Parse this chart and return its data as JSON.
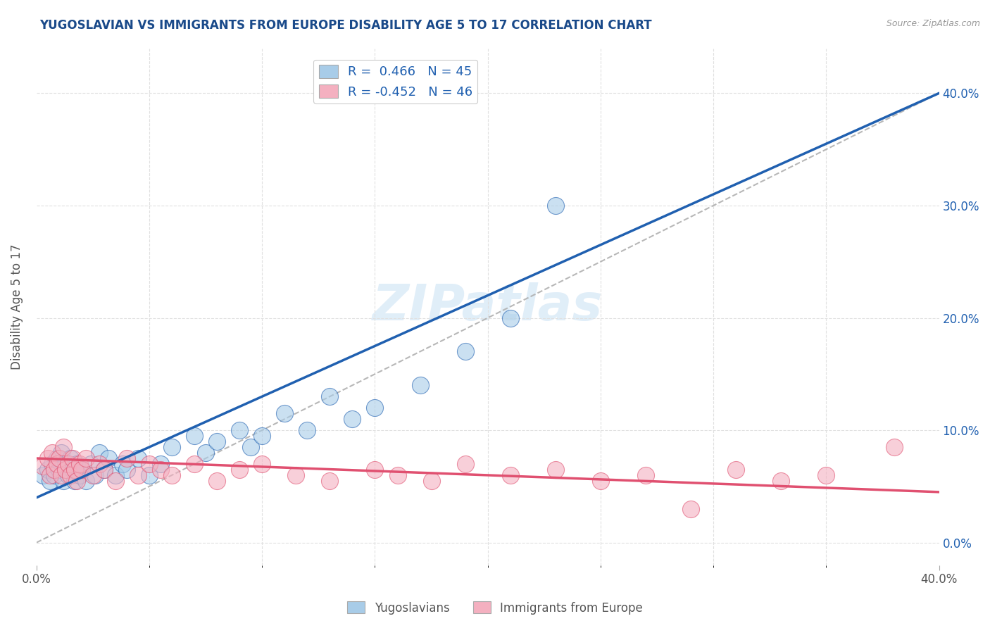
{
  "title": "YUGOSLAVIAN VS IMMIGRANTS FROM EUROPE DISABILITY AGE 5 TO 17 CORRELATION CHART",
  "source": "Source: ZipAtlas.com",
  "ylabel": "Disability Age 5 to 17",
  "right_yticks": [
    "0.0%",
    "10.0%",
    "20.0%",
    "30.0%",
    "40.0%"
  ],
  "right_ytick_vals": [
    0.0,
    0.1,
    0.2,
    0.3,
    0.4
  ],
  "xmin": 0.0,
  "xmax": 0.4,
  "ymin": -0.02,
  "ymax": 0.44,
  "legend_entry1": "R =  0.466   N = 45",
  "legend_entry2": "R = -0.452   N = 46",
  "legend_label1": "Yugoslavians",
  "legend_label2": "Immigrants from Europe",
  "color_blue": "#a8cce8",
  "color_pink": "#f4b0c0",
  "color_blue_line": "#2060b0",
  "color_pink_line": "#e05070",
  "color_diag": "#b0b0b0",
  "color_title": "#1a4a8a",
  "color_source": "#999999",
  "watermark": "ZIPatlas",
  "blue_scatter_x": [
    0.003,
    0.005,
    0.006,
    0.007,
    0.008,
    0.009,
    0.01,
    0.011,
    0.012,
    0.013,
    0.014,
    0.015,
    0.016,
    0.017,
    0.018,
    0.019,
    0.02,
    0.022,
    0.024,
    0.026,
    0.028,
    0.03,
    0.032,
    0.035,
    0.038,
    0.04,
    0.045,
    0.05,
    0.055,
    0.06,
    0.07,
    0.075,
    0.08,
    0.09,
    0.095,
    0.1,
    0.11,
    0.12,
    0.13,
    0.14,
    0.15,
    0.17,
    0.19,
    0.21,
    0.23
  ],
  "blue_scatter_y": [
    0.06,
    0.065,
    0.055,
    0.07,
    0.06,
    0.075,
    0.065,
    0.08,
    0.055,
    0.07,
    0.06,
    0.075,
    0.065,
    0.055,
    0.07,
    0.06,
    0.065,
    0.055,
    0.07,
    0.06,
    0.08,
    0.065,
    0.075,
    0.06,
    0.07,
    0.065,
    0.075,
    0.06,
    0.07,
    0.085,
    0.095,
    0.08,
    0.09,
    0.1,
    0.085,
    0.095,
    0.115,
    0.1,
    0.13,
    0.11,
    0.12,
    0.14,
    0.17,
    0.2,
    0.3
  ],
  "pink_scatter_x": [
    0.003,
    0.005,
    0.006,
    0.007,
    0.008,
    0.009,
    0.01,
    0.011,
    0.012,
    0.013,
    0.014,
    0.015,
    0.016,
    0.017,
    0.018,
    0.019,
    0.02,
    0.022,
    0.025,
    0.028,
    0.03,
    0.035,
    0.04,
    0.045,
    0.05,
    0.055,
    0.06,
    0.07,
    0.08,
    0.09,
    0.1,
    0.115,
    0.13,
    0.15,
    0.16,
    0.175,
    0.19,
    0.21,
    0.23,
    0.25,
    0.27,
    0.29,
    0.31,
    0.33,
    0.35,
    0.38
  ],
  "pink_scatter_y": [
    0.068,
    0.075,
    0.06,
    0.08,
    0.065,
    0.07,
    0.075,
    0.06,
    0.085,
    0.065,
    0.07,
    0.06,
    0.075,
    0.065,
    0.055,
    0.07,
    0.065,
    0.075,
    0.06,
    0.07,
    0.065,
    0.055,
    0.075,
    0.06,
    0.07,
    0.065,
    0.06,
    0.07,
    0.055,
    0.065,
    0.07,
    0.06,
    0.055,
    0.065,
    0.06,
    0.055,
    0.07,
    0.06,
    0.065,
    0.055,
    0.06,
    0.03,
    0.065,
    0.055,
    0.06,
    0.085
  ],
  "blue_line_x": [
    0.0,
    0.4
  ],
  "blue_line_y": [
    0.04,
    0.4
  ],
  "pink_line_x": [
    0.0,
    0.4
  ],
  "pink_line_y": [
    0.075,
    0.045
  ],
  "diag_line_x": [
    0.0,
    0.4
  ],
  "diag_line_y": [
    0.0,
    0.4
  ],
  "grid_color": "#e0e0e0",
  "bg_color": "#ffffff",
  "plot_bg_color": "#ffffff"
}
